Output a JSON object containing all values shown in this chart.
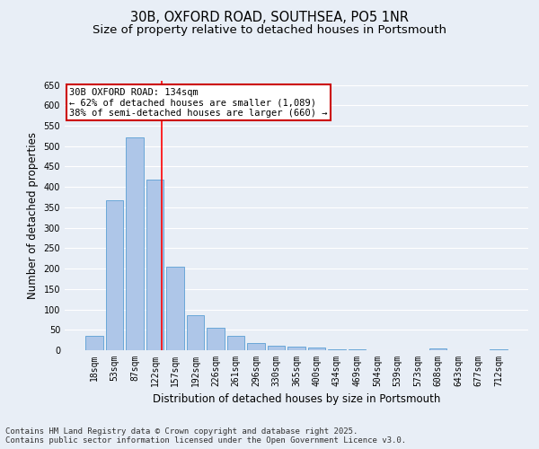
{
  "title_line1": "30B, OXFORD ROAD, SOUTHSEA, PO5 1NR",
  "title_line2": "Size of property relative to detached houses in Portsmouth",
  "xlabel": "Distribution of detached houses by size in Portsmouth",
  "ylabel": "Number of detached properties",
  "categories": [
    "18sqm",
    "53sqm",
    "87sqm",
    "122sqm",
    "157sqm",
    "192sqm",
    "226sqm",
    "261sqm",
    "296sqm",
    "330sqm",
    "365sqm",
    "400sqm",
    "434sqm",
    "469sqm",
    "504sqm",
    "539sqm",
    "573sqm",
    "608sqm",
    "643sqm",
    "677sqm",
    "712sqm"
  ],
  "values": [
    35,
    368,
    522,
    418,
    205,
    85,
    55,
    35,
    18,
    12,
    8,
    7,
    3,
    2,
    1,
    1,
    1,
    4,
    1,
    1,
    3
  ],
  "bar_color": "#aec6e8",
  "bar_edge_color": "#5a9fd4",
  "background_color": "#e8eef6",
  "grid_color": "#ffffff",
  "ylim": [
    0,
    660
  ],
  "yticks": [
    0,
    50,
    100,
    150,
    200,
    250,
    300,
    350,
    400,
    450,
    500,
    550,
    600,
    650
  ],
  "annotation_text_line1": "30B OXFORD ROAD: 134sqm",
  "annotation_text_line2": "← 62% of detached houses are smaller (1,089)",
  "annotation_text_line3": "38% of semi-detached houses are larger (660) →",
  "annotation_box_color": "#ffffff",
  "annotation_box_edge_color": "#cc0000",
  "footer_line1": "Contains HM Land Registry data © Crown copyright and database right 2025.",
  "footer_line2": "Contains public sector information licensed under the Open Government Licence v3.0.",
  "title_fontsize": 10.5,
  "subtitle_fontsize": 9.5,
  "axis_label_fontsize": 8.5,
  "tick_fontsize": 7,
  "footer_fontsize": 6.5,
  "annotation_fontsize": 7.5
}
